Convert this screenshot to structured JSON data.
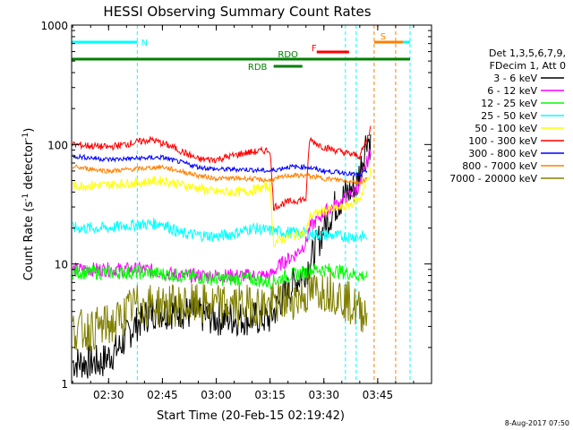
{
  "chart_data": {
    "type": "line",
    "title": "HESSI Observing Summary Count Rates",
    "xlabel": "Start Time (20-Feb-15 02:19:42)",
    "ylabel": "Count Rate (s⁻¹ detector⁻¹)",
    "ylabel_main": "Count Rate (s",
    "ylabel_sup1": "-1",
    "ylabel_mid": " detector",
    "ylabel_sup2": "-1",
    "ylabel_end": ")",
    "y_scale": "log",
    "ylim": [
      1,
      1000
    ],
    "xlim": [
      "02:19:42",
      "04:00:00"
    ],
    "x_ticks": [
      "02:30",
      "02:45",
      "03:00",
      "03:15",
      "03:30",
      "03:45"
    ],
    "y_ticks": [
      "1",
      "10",
      "100",
      "1000"
    ],
    "legend_placement": "right",
    "legend_header": [
      "Det 1,3,5,6,7,9,",
      "FDecim 1, Att 0"
    ],
    "timestamp": "8-Aug-2017 07:50",
    "flags": [
      {
        "label": "N",
        "color": "#00ffff",
        "intervals": [
          [
            "02:19:42",
            "02:38:00"
          ],
          [
            "03:48:00",
            "03:54:00"
          ]
        ],
        "level": "top"
      },
      {
        "label": "S",
        "color": "#ff8000",
        "intervals": [
          [
            "03:44:00",
            "03:52:00"
          ]
        ],
        "level": "top"
      },
      {
        "label": "F",
        "color": "#ff0000",
        "intervals": [
          [
            "03:28:00",
            "03:37:00"
          ]
        ],
        "level": "upper"
      },
      {
        "label": "RDO",
        "color": "#008000",
        "intervals": [
          [
            "02:19:42",
            "03:54:00"
          ]
        ],
        "level": "middle"
      },
      {
        "label": "RDB",
        "color": "#008000",
        "intervals": [
          [
            "03:16:00",
            "03:24:00"
          ]
        ],
        "level": "lower"
      }
    ],
    "vlines": [
      {
        "time": "02:38:00",
        "color": "#00ffff"
      },
      {
        "time": "03:36:00",
        "color": "#00ffff"
      },
      {
        "time": "03:39:00",
        "color": "#00ffff"
      },
      {
        "time": "03:44:00",
        "color": "#ff8000"
      },
      {
        "time": "03:50:00",
        "color": "#ff8000"
      },
      {
        "time": "03:54:00",
        "color": "#00ffff"
      }
    ],
    "series": [
      {
        "name": "3 - 6 keV",
        "color": "#000000",
        "noise": 0.15,
        "x": [
          "02:20",
          "02:28",
          "02:33",
          "02:37",
          "02:42",
          "02:50",
          "03:00",
          "03:10",
          "03:15",
          "03:18",
          "03:22",
          "03:26",
          "03:30",
          "03:33",
          "03:36",
          "03:39",
          "03:41",
          "03:42",
          "03:43"
        ],
        "y": [
          1.5,
          1.5,
          2,
          3,
          4,
          4,
          3.5,
          3.5,
          3.5,
          5,
          7,
          10,
          20,
          30,
          38,
          45,
          80,
          120,
          100
        ]
      },
      {
        "name": "6 - 12 keV",
        "color": "#ff00ff",
        "noise": 0.06,
        "x": [
          "02:20",
          "02:30",
          "02:40",
          "02:50",
          "03:00",
          "03:10",
          "03:15",
          "03:18",
          "03:22",
          "03:25",
          "03:26",
          "03:30",
          "03:34",
          "03:36",
          "03:40",
          "03:42",
          "03:43"
        ],
        "y": [
          9,
          9,
          9,
          8,
          8,
          8,
          8,
          10,
          12,
          15,
          20,
          27,
          32,
          35,
          45,
          70,
          90
        ]
      },
      {
        "name": "12 - 25 keV",
        "color": "#00ff00",
        "noise": 0.06,
        "x": [
          "02:20",
          "02:30",
          "02:40",
          "02:50",
          "03:00",
          "03:10",
          "03:15",
          "03:20",
          "03:25",
          "03:26",
          "03:30",
          "03:36",
          "03:40",
          "03:42"
        ],
        "y": [
          8.5,
          8.5,
          8.5,
          8,
          7.5,
          7.5,
          7,
          8,
          8.5,
          9,
          9,
          8.5,
          8,
          8
        ]
      },
      {
        "name": "25 - 50 keV",
        "color": "#00ffff",
        "noise": 0.05,
        "x": [
          "02:20",
          "02:30",
          "02:35",
          "02:45",
          "02:50",
          "03:00",
          "03:05",
          "03:10",
          "03:15",
          "03:25",
          "03:35",
          "03:42"
        ],
        "y": [
          20,
          20,
          21,
          22,
          18,
          17,
          18,
          20,
          19,
          18,
          17,
          17
        ]
      },
      {
        "name": "50 - 100 keV",
        "color": "#ffff00",
        "noise": 0.04,
        "x": [
          "02:20",
          "02:30",
          "02:45",
          "03:00",
          "03:08",
          "03:15",
          "03:16",
          "03:20",
          "03:25",
          "03:26",
          "03:30",
          "03:36",
          "03:40",
          "03:42",
          "03:43"
        ],
        "y": [
          45,
          46,
          50,
          40,
          40,
          45,
          15,
          17,
          18,
          25,
          28,
          30,
          35,
          50,
          60
        ]
      },
      {
        "name": "100 - 300 keV",
        "color": "#ff0000",
        "noise": 0.03,
        "x": [
          "02:20",
          "02:30",
          "02:42",
          "02:48",
          "02:55",
          "03:00",
          "03:08",
          "03:15",
          "03:16",
          "03:20",
          "03:25",
          "03:26",
          "03:30",
          "03:36",
          "03:40",
          "03:42",
          "03:43"
        ],
        "y": [
          100,
          95,
          110,
          95,
          75,
          75,
          85,
          90,
          30,
          33,
          35,
          110,
          95,
          85,
          80,
          110,
          140
        ]
      },
      {
        "name": "300 - 800 keV",
        "color": "#0000ff",
        "noise": 0.02,
        "x": [
          "02:20",
          "02:30",
          "02:45",
          "02:55",
          "03:00",
          "03:08",
          "03:15",
          "03:20",
          "03:25",
          "03:30",
          "03:36",
          "03:40",
          "03:42"
        ],
        "y": [
          80,
          75,
          78,
          65,
          62,
          62,
          60,
          65,
          65,
          60,
          58,
          55,
          60
        ]
      },
      {
        "name": "800 - 7000 keV",
        "color": "#ff8000",
        "noise": 0.02,
        "x": [
          "02:20",
          "02:30",
          "02:45",
          "02:55",
          "03:00",
          "03:08",
          "03:15",
          "03:20",
          "03:25",
          "03:30",
          "03:36",
          "03:40",
          "03:42"
        ],
        "y": [
          65,
          60,
          65,
          55,
          52,
          52,
          50,
          55,
          55,
          52,
          50,
          48,
          52
        ]
      },
      {
        "name": "7000 - 20000 keV",
        "color": "#808000",
        "noise": 0.18,
        "x": [
          "02:20",
          "02:25",
          "02:32",
          "02:37",
          "02:42",
          "02:50",
          "03:00",
          "03:10",
          "03:15",
          "03:20",
          "03:25",
          "03:28",
          "03:32",
          "03:36",
          "03:40",
          "03:42"
        ],
        "y": [
          2.8,
          2.8,
          3.2,
          4.5,
          4.5,
          4.5,
          4.5,
          4.5,
          4.5,
          5,
          5.5,
          6,
          6,
          5,
          4,
          4
        ]
      }
    ]
  }
}
